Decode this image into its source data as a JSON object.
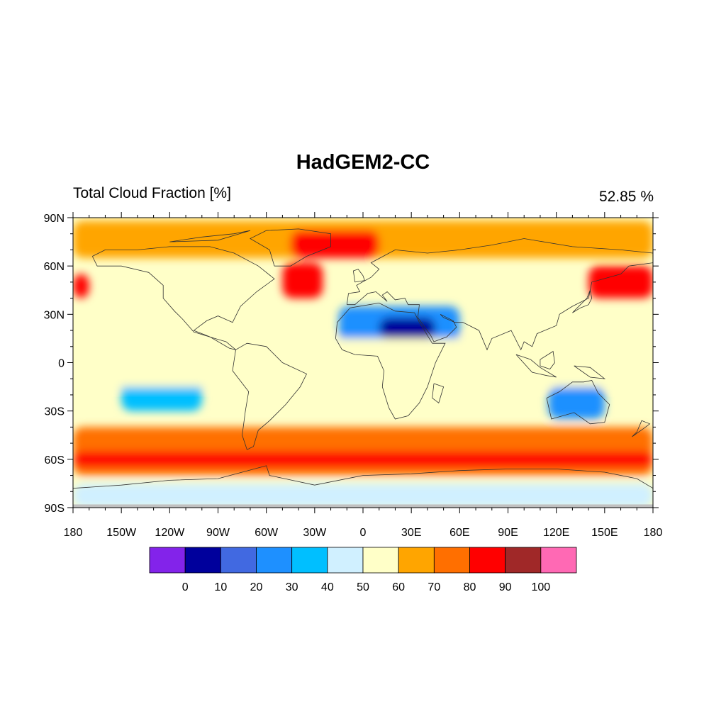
{
  "title": "HadGEM2-CC",
  "left_string": "Total Cloud Fraction [%]",
  "right_string": "52.85 %",
  "map": {
    "type": "contour-map",
    "projection": "cylindrical-equidistant",
    "lon_range": [
      -180,
      180
    ],
    "lat_range": [
      -90,
      90
    ],
    "lat_ticks": [
      {
        "value": 90,
        "label": "90N"
      },
      {
        "value": 60,
        "label": "60N"
      },
      {
        "value": 30,
        "label": "30N"
      },
      {
        "value": 0,
        "label": "0"
      },
      {
        "value": -30,
        "label": "30S"
      },
      {
        "value": -60,
        "label": "60S"
      },
      {
        "value": -90,
        "label": "90S"
      }
    ],
    "lon_ticks": [
      {
        "value": -180,
        "label": "180"
      },
      {
        "value": -150,
        "label": "150W"
      },
      {
        "value": -120,
        "label": "120W"
      },
      {
        "value": -90,
        "label": "90W"
      },
      {
        "value": -60,
        "label": "60W"
      },
      {
        "value": -30,
        "label": "30W"
      },
      {
        "value": 0,
        "label": "0"
      },
      {
        "value": 30,
        "label": "30E"
      },
      {
        "value": 60,
        "label": "60E"
      },
      {
        "value": 90,
        "label": "90E"
      },
      {
        "value": 120,
        "label": "120E"
      },
      {
        "value": 150,
        "label": "150E"
      },
      {
        "value": 180,
        "label": "180"
      }
    ],
    "missing_color": "#c0c0c0"
  },
  "colorbar": {
    "colors": [
      "#8323ea",
      "#00009c",
      "#4169e1",
      "#1e90ff",
      "#00bfff",
      "#d0f0ff",
      "#ffffc8",
      "#ffa500",
      "#ff6f00",
      "#ff0000",
      "#a02828",
      "#ff69b4"
    ],
    "labels": [
      "0",
      "10",
      "20",
      "30",
      "40",
      "50",
      "60",
      "70",
      "80",
      "90",
      "100"
    ]
  },
  "regions": [
    {
      "name": "arctic-orange",
      "lon": [
        -180,
        180
      ],
      "lat": [
        65,
        88
      ],
      "value": 65
    },
    {
      "name": "greenland-sea-red",
      "lon": [
        -45,
        10
      ],
      "lat": [
        65,
        82
      ],
      "value": 85
    },
    {
      "name": "north-atlantic-red",
      "lon": [
        -50,
        -25
      ],
      "lat": [
        40,
        62
      ],
      "value": 85
    },
    {
      "name": "north-pacific-red",
      "lon": [
        140,
        180
      ],
      "lat": [
        40,
        60
      ],
      "value": 85
    },
    {
      "name": "north-pacific-red-w",
      "lon": [
        -180,
        -170
      ],
      "lat": [
        40,
        55
      ],
      "value": 85
    },
    {
      "name": "sahara-blue",
      "lon": [
        -15,
        60
      ],
      "lat": [
        12,
        35
      ],
      "value": 25
    },
    {
      "name": "sahara-darkblue",
      "lon": [
        10,
        45
      ],
      "lat": [
        15,
        28
      ],
      "value": 5
    },
    {
      "name": "australia-blue",
      "lon": [
        115,
        150
      ],
      "lat": [
        -35,
        -15
      ],
      "value": 25
    },
    {
      "name": "southern-ocean-orange",
      "lon": [
        -180,
        180
      ],
      "lat": [
        -70,
        -40
      ],
      "value": 75
    },
    {
      "name": "southern-ocean-red",
      "lon": [
        -180,
        180
      ],
      "lat": [
        -65,
        -55
      ],
      "value": 85
    },
    {
      "name": "antarctica-lightblue",
      "lon": [
        -180,
        180
      ],
      "lat": [
        -90,
        -75
      ],
      "value": 45
    },
    {
      "name": "subtropical-pacific-blue",
      "lon": [
        -150,
        -100
      ],
      "lat": [
        -30,
        -5
      ],
      "value": 35
    },
    {
      "name": "tropical-yellow",
      "lon": [
        -180,
        180
      ],
      "lat": [
        -15,
        15
      ],
      "value": 55
    }
  ]
}
